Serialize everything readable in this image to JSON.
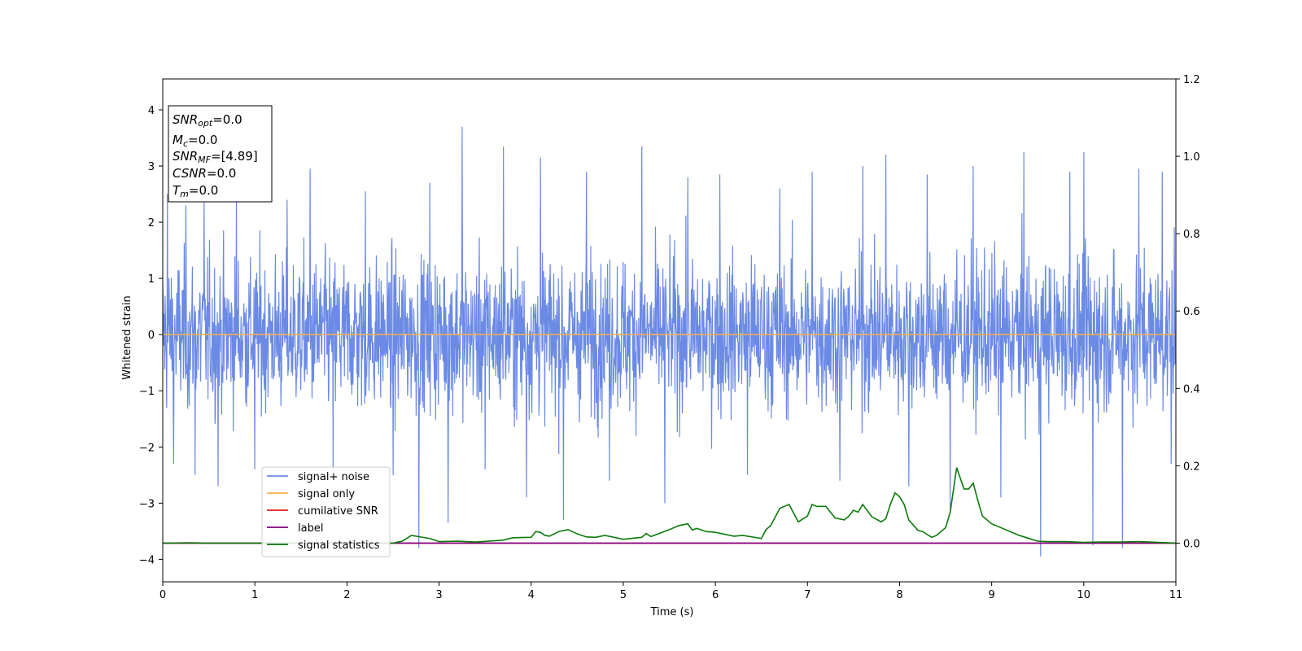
{
  "chart_data": {
    "type": "line",
    "title": "",
    "xlabel": "Time (s)",
    "ylabel": "Whitened strain",
    "xlim": [
      0,
      11
    ],
    "ylim": [
      -4.4,
      4.55
    ],
    "y2lim": [
      -0.1,
      1.2
    ],
    "xticks": [
      0,
      1,
      2,
      3,
      4,
      5,
      6,
      7,
      8,
      9,
      10,
      11
    ],
    "yticks": [
      -4,
      -3,
      -2,
      -1,
      0,
      1,
      2,
      3,
      4
    ],
    "y2ticks": [
      0.0,
      0.2,
      0.4,
      0.6,
      0.8,
      1.0,
      1.2
    ],
    "legend_position": "lower-left",
    "colors": {
      "signal_noise": "#6b8ae6",
      "signal_only": "#f5b04a",
      "cumulative_snr": "#e01b1b",
      "label": "#800080",
      "signal_statistics": "#0a7a0a"
    },
    "series": [
      {
        "name": "signal+ noise",
        "axis": "left",
        "description_of_values": "noise",
        "envelope_typical": [
          -1.6,
          1.6
        ],
        "spikes": [
          {
            "x": 0.05,
            "y": 2.5
          },
          {
            "x": 0.12,
            "y": -2.3
          },
          {
            "x": 0.25,
            "y": 2.3
          },
          {
            "x": 0.35,
            "y": -2.5
          },
          {
            "x": 0.45,
            "y": 2.45
          },
          {
            "x": 0.6,
            "y": -2.7
          },
          {
            "x": 0.8,
            "y": 2.5
          },
          {
            "x": 1.0,
            "y": -2.4
          },
          {
            "x": 1.35,
            "y": 2.4
          },
          {
            "x": 1.6,
            "y": 2.95
          },
          {
            "x": 1.85,
            "y": -2.6
          },
          {
            "x": 2.2,
            "y": 2.55
          },
          {
            "x": 2.5,
            "y": -2.5
          },
          {
            "x": 2.78,
            "y": -3.8
          },
          {
            "x": 2.9,
            "y": 2.7
          },
          {
            "x": 3.1,
            "y": -3.35
          },
          {
            "x": 3.25,
            "y": 3.7
          },
          {
            "x": 3.5,
            "y": -2.4
          },
          {
            "x": 3.7,
            "y": 3.35
          },
          {
            "x": 3.95,
            "y": -2.9
          },
          {
            "x": 4.1,
            "y": 3.15
          },
          {
            "x": 4.35,
            "y": -3.3
          },
          {
            "x": 4.6,
            "y": 2.9
          },
          {
            "x": 4.85,
            "y": -2.6
          },
          {
            "x": 5.2,
            "y": 3.35
          },
          {
            "x": 5.45,
            "y": -3.0
          },
          {
            "x": 5.7,
            "y": 2.8
          },
          {
            "x": 6.05,
            "y": 2.85
          },
          {
            "x": 6.35,
            "y": -2.5
          },
          {
            "x": 6.7,
            "y": 2.6
          },
          {
            "x": 7.05,
            "y": 2.9
          },
          {
            "x": 7.35,
            "y": -2.6
          },
          {
            "x": 7.6,
            "y": 3.0
          },
          {
            "x": 7.85,
            "y": 3.2
          },
          {
            "x": 8.1,
            "y": -2.7
          },
          {
            "x": 8.3,
            "y": 2.85
          },
          {
            "x": 8.55,
            "y": -3.1
          },
          {
            "x": 8.8,
            "y": 3.0
          },
          {
            "x": 9.1,
            "y": -2.9
          },
          {
            "x": 9.35,
            "y": 3.25
          },
          {
            "x": 9.53,
            "y": -3.95
          },
          {
            "x": 9.85,
            "y": 2.9
          },
          {
            "x": 10.0,
            "y": 3.25
          },
          {
            "x": 10.1,
            "y": -3.75
          },
          {
            "x": 10.42,
            "y": -3.8
          },
          {
            "x": 10.6,
            "y": 2.95
          },
          {
            "x": 10.85,
            "y": 2.9
          },
          {
            "x": 10.95,
            "y": -2.3
          }
        ]
      },
      {
        "name": "signal only",
        "axis": "left",
        "x": [
          0,
          11
        ],
        "y": [
          0,
          0
        ]
      },
      {
        "name": "cumilative SNR",
        "axis": "right",
        "x": [
          0,
          11
        ],
        "y": [
          0,
          0
        ]
      },
      {
        "name": "label",
        "axis": "right",
        "x": [
          0,
          11
        ],
        "y": [
          0,
          0
        ]
      },
      {
        "name": "signal statistics",
        "axis": "right",
        "x": [
          0,
          0.3,
          0.5,
          1.0,
          1.5,
          2.0,
          2.2,
          2.5,
          2.6,
          2.7,
          2.8,
          2.9,
          3.0,
          3.2,
          3.4,
          3.6,
          3.7,
          3.8,
          4.0,
          4.05,
          4.1,
          4.15,
          4.2,
          4.3,
          4.4,
          4.5,
          4.6,
          4.7,
          4.8,
          5.0,
          5.2,
          5.25,
          5.3,
          5.5,
          5.6,
          5.7,
          5.75,
          5.8,
          5.9,
          6.0,
          6.2,
          6.3,
          6.5,
          6.55,
          6.6,
          6.7,
          6.75,
          6.8,
          6.9,
          7.0,
          7.05,
          7.1,
          7.2,
          7.3,
          7.4,
          7.45,
          7.5,
          7.55,
          7.6,
          7.7,
          7.8,
          7.85,
          7.9,
          7.95,
          8.0,
          8.05,
          8.1,
          8.2,
          8.25,
          8.35,
          8.4,
          8.5,
          8.55,
          8.62,
          8.7,
          8.75,
          8.8,
          8.85,
          8.9,
          9.0,
          9.1,
          9.3,
          9.5,
          9.6,
          9.8,
          10.0,
          10.2,
          10.4,
          10.6,
          11.0
        ],
        "y": [
          0.0,
          0.001,
          0.0,
          0.0,
          0.0,
          0.001,
          0.0,
          0.0,
          0.005,
          0.02,
          0.016,
          0.012,
          0.004,
          0.005,
          0.003,
          0.006,
          0.008,
          0.014,
          0.015,
          0.03,
          0.028,
          0.02,
          0.018,
          0.03,
          0.035,
          0.024,
          0.016,
          0.015,
          0.02,
          0.01,
          0.015,
          0.025,
          0.017,
          0.035,
          0.045,
          0.05,
          0.034,
          0.038,
          0.03,
          0.028,
          0.018,
          0.02,
          0.012,
          0.035,
          0.045,
          0.09,
          0.095,
          0.1,
          0.055,
          0.07,
          0.1,
          0.095,
          0.095,
          0.065,
          0.06,
          0.07,
          0.085,
          0.08,
          0.1,
          0.068,
          0.055,
          0.063,
          0.1,
          0.13,
          0.12,
          0.1,
          0.06,
          0.033,
          0.03,
          0.015,
          0.02,
          0.04,
          0.08,
          0.195,
          0.14,
          0.14,
          0.155,
          0.11,
          0.07,
          0.05,
          0.04,
          0.02,
          0.005,
          0.004,
          0.004,
          0.002,
          0.003,
          0.003,
          0.004,
          0.0
        ]
      }
    ],
    "annotation": {
      "lines": [
        {
          "base": "SNR",
          "sub": "opt",
          "text": "=0.0"
        },
        {
          "base": "M",
          "sub": "c",
          "text": "=0.0"
        },
        {
          "base": "SNR",
          "sub": "MF",
          "text": "=[4.89]"
        },
        {
          "base": "CSNR",
          "sub": "",
          "text": "=0.0"
        },
        {
          "base": "T",
          "sub": "m",
          "text": "=0.0"
        }
      ]
    }
  }
}
